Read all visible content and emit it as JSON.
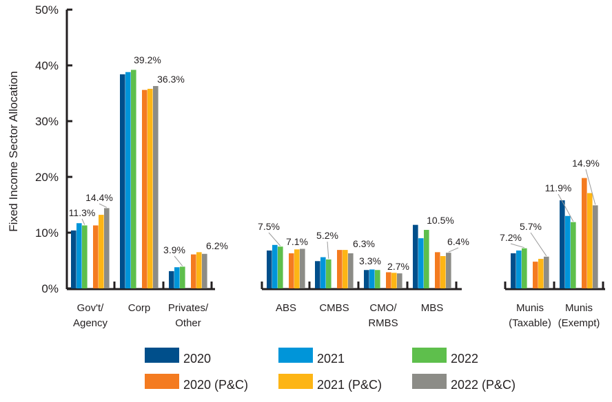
{
  "chart_data": {
    "type": "bar",
    "ylabel": "Fixed Income Sector Allocation",
    "ylim": [
      0,
      50
    ],
    "yticks": [
      "0%",
      "10%",
      "20%",
      "30%",
      "40%",
      "50%"
    ],
    "categories": [
      [
        "Gov't/",
        "Agency"
      ],
      [
        "Corp"
      ],
      [
        "Privates/",
        "Other"
      ],
      [
        "ABS"
      ],
      [
        "CMBS"
      ],
      [
        "CMO/",
        "RMBS"
      ],
      [
        "MBS"
      ],
      [
        "Munis",
        "(Taxable)"
      ],
      [
        "Munis",
        "(Exempt)"
      ]
    ],
    "series": [
      {
        "name": "2020",
        "color": "#004f8b",
        "values": [
          10.4,
          38.4,
          3.1,
          6.8,
          4.9,
          3.3,
          11.4,
          6.3,
          15.8
        ]
      },
      {
        "name": "2021",
        "color": "#0095d9",
        "values": [
          11.7,
          38.8,
          3.8,
          7.8,
          5.6,
          3.4,
          9.0,
          6.8,
          13.0
        ]
      },
      {
        "name": "2022",
        "color": "#5ebf4c",
        "values": [
          11.3,
          39.2,
          3.9,
          7.5,
          5.2,
          3.3,
          10.5,
          7.2,
          11.9
        ]
      },
      {
        "name": "2020 (P&C)",
        "color": "#f47b20",
        "values": [
          11.3,
          35.6,
          6.1,
          6.3,
          6.9,
          2.9,
          6.5,
          4.8,
          19.8
        ]
      },
      {
        "name": "2021 (P&C)",
        "color": "#fdb515",
        "values": [
          13.2,
          35.8,
          6.5,
          7.0,
          6.9,
          2.8,
          5.8,
          5.3,
          17.1
        ]
      },
      {
        "name": "2022 (P&C)",
        "color": "#8c8c87",
        "values": [
          14.4,
          36.3,
          6.2,
          7.1,
          6.3,
          2.7,
          6.4,
          5.7,
          14.9
        ]
      }
    ],
    "annotations": [
      {
        "text": "11.3%",
        "category": 0,
        "series": 2
      },
      {
        "text": "14.4%",
        "category": 0,
        "series": 5
      },
      {
        "text": "39.2%",
        "category": 1,
        "series": 2
      },
      {
        "text": "36.3%",
        "category": 1,
        "series": 5
      },
      {
        "text": "3.9%",
        "category": 2,
        "series": 2
      },
      {
        "text": "6.2%",
        "category": 2,
        "series": 5
      },
      {
        "text": "7.5%",
        "category": 3,
        "series": 2
      },
      {
        "text": "7.1%",
        "category": 3,
        "series": 5
      },
      {
        "text": "5.2%",
        "category": 4,
        "series": 2
      },
      {
        "text": "6.3%",
        "category": 4,
        "series": 5
      },
      {
        "text": "3.3%",
        "category": 5,
        "series": 2
      },
      {
        "text": "2.7%",
        "category": 5,
        "series": 5
      },
      {
        "text": "10.5%",
        "category": 6,
        "series": 2
      },
      {
        "text": "6.4%",
        "category": 6,
        "series": 5
      },
      {
        "text": "7.2%",
        "category": 7,
        "series": 2
      },
      {
        "text": "5.7%",
        "category": 7,
        "series": 5
      },
      {
        "text": "11.9%",
        "category": 8,
        "series": 2
      },
      {
        "text": "14.9%",
        "category": 8,
        "series": 5
      }
    ],
    "legend": "bottom",
    "grid": false
  }
}
